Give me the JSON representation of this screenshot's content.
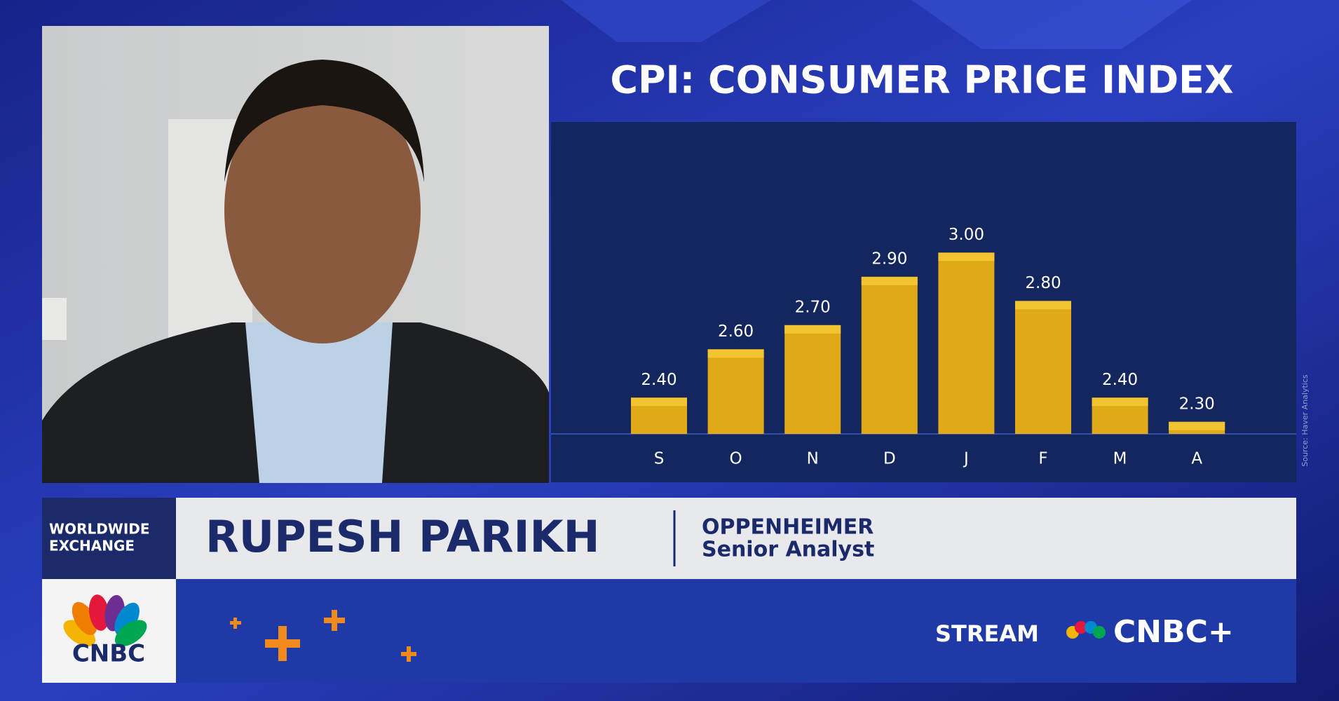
{
  "chart_data": {
    "type": "bar",
    "title": "CPI: CONSUMER PRICE INDEX",
    "categories": [
      "S",
      "O",
      "N",
      "D",
      "J",
      "F",
      "M",
      "A"
    ],
    "values": [
      2.4,
      2.6,
      2.7,
      2.9,
      3.0,
      2.8,
      2.4,
      2.3
    ],
    "value_labels": [
      "2.40",
      "2.60",
      "2.70",
      "2.90",
      "3.00",
      "2.80",
      "2.40",
      "2.30"
    ],
    "color": "#e0a916",
    "ylim": [
      2.25,
      3.5
    ],
    "source": "Source: Haver Analytics"
  },
  "lower_third": {
    "show_lines": [
      "WORLDWIDE",
      "EXCHANGE"
    ],
    "name": "RUPESH PARIKH",
    "company": "OPPENHEIMER",
    "role": "Senior Analyst"
  },
  "branding": {
    "network": "CNBC",
    "promo": "STREAM",
    "service": "CNBC+"
  }
}
